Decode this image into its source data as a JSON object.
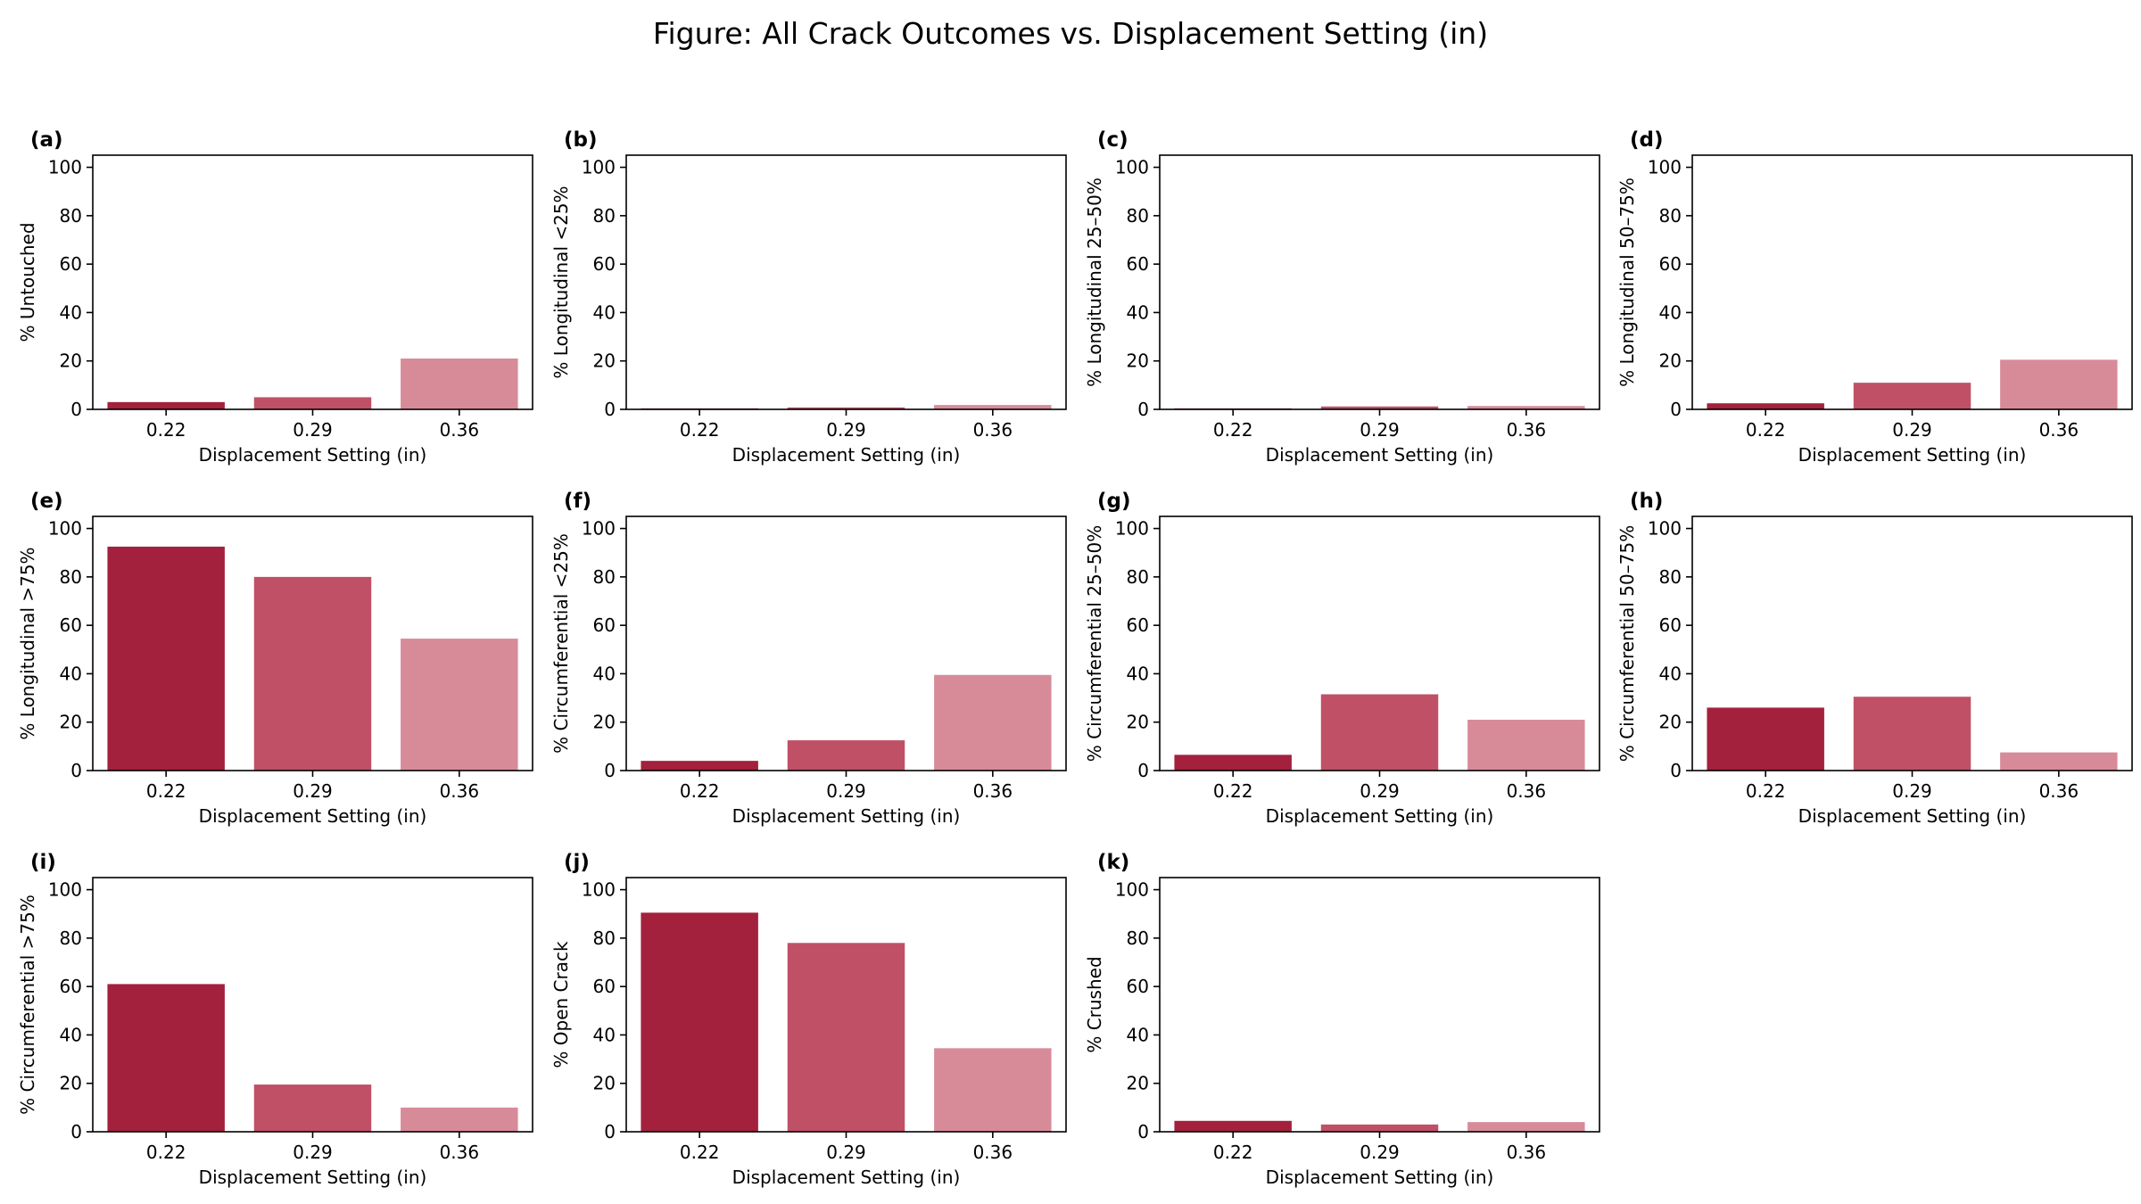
{
  "figure": {
    "title": "Figure: All Crack Outcomes vs. Displacement Setting (in)"
  },
  "colors": {
    "bar_colors": [
      "#a3213c",
      "#c05066",
      "#d78b99"
    ],
    "axis": "#000000",
    "background": "#ffffff"
  },
  "chart_data": [
    {
      "panel": "(a)",
      "type": "bar",
      "categories": [
        "0.22",
        "0.29",
        "0.36"
      ],
      "values": [
        3,
        5,
        21
      ],
      "xlabel": "Displacement Setting (in)",
      "ylabel": "% Untouched",
      "ylim": [
        0,
        105
      ],
      "yticks": [
        0,
        20,
        40,
        60,
        80,
        100
      ],
      "grid": false
    },
    {
      "panel": "(b)",
      "type": "bar",
      "categories": [
        "0.22",
        "0.29",
        "0.36"
      ],
      "values": [
        0.4,
        0.8,
        1.8
      ],
      "xlabel": "Displacement Setting (in)",
      "ylabel": "% Longitudinal <25%",
      "ylim": [
        0,
        105
      ],
      "yticks": [
        0,
        20,
        40,
        60,
        80,
        100
      ],
      "grid": false
    },
    {
      "panel": "(c)",
      "type": "bar",
      "categories": [
        "0.22",
        "0.29",
        "0.36"
      ],
      "values": [
        0.4,
        1.2,
        1.4
      ],
      "xlabel": "Displacement Setting (in)",
      "ylabel": "% Longitudinal 25–50%",
      "ylim": [
        0,
        105
      ],
      "yticks": [
        0,
        20,
        40,
        60,
        80,
        100
      ],
      "grid": false
    },
    {
      "panel": "(d)",
      "type": "bar",
      "categories": [
        "0.22",
        "0.29",
        "0.36"
      ],
      "values": [
        2.5,
        11,
        20.5
      ],
      "xlabel": "Displacement Setting (in)",
      "ylabel": "% Longitudinal 50–75%",
      "ylim": [
        0,
        105
      ],
      "yticks": [
        0,
        20,
        40,
        60,
        80,
        100
      ],
      "grid": false
    },
    {
      "panel": "(e)",
      "type": "bar",
      "categories": [
        "0.22",
        "0.29",
        "0.36"
      ],
      "values": [
        92.5,
        80,
        54.5
      ],
      "xlabel": "Displacement Setting (in)",
      "ylabel": "% Longitudinal >75%",
      "ylim": [
        0,
        105
      ],
      "yticks": [
        0,
        20,
        40,
        60,
        80,
        100
      ],
      "grid": false
    },
    {
      "panel": "(f)",
      "type": "bar",
      "categories": [
        "0.22",
        "0.29",
        "0.36"
      ],
      "values": [
        4,
        12.5,
        39.5
      ],
      "xlabel": "Displacement Setting (in)",
      "ylabel": "% Circumferential <25%",
      "ylim": [
        0,
        105
      ],
      "yticks": [
        0,
        20,
        40,
        60,
        80,
        100
      ],
      "grid": false
    },
    {
      "panel": "(g)",
      "type": "bar",
      "categories": [
        "0.22",
        "0.29",
        "0.36"
      ],
      "values": [
        6.5,
        31.5,
        21
      ],
      "xlabel": "Displacement Setting (in)",
      "ylabel": "% Circumferential 25–50%",
      "ylim": [
        0,
        105
      ],
      "yticks": [
        0,
        20,
        40,
        60,
        80,
        100
      ],
      "grid": false
    },
    {
      "panel": "(h)",
      "type": "bar",
      "categories": [
        "0.22",
        "0.29",
        "0.36"
      ],
      "values": [
        26,
        30.5,
        7.5
      ],
      "xlabel": "Displacement Setting (in)",
      "ylabel": "% Circumferential 50–75%",
      "ylim": [
        0,
        105
      ],
      "yticks": [
        0,
        20,
        40,
        60,
        80,
        100
      ],
      "grid": false
    },
    {
      "panel": "(i)",
      "type": "bar",
      "categories": [
        "0.22",
        "0.29",
        "0.36"
      ],
      "values": [
        61,
        19.5,
        10
      ],
      "xlabel": "Displacement Setting (in)",
      "ylabel": "% Circumferential >75%",
      "ylim": [
        0,
        105
      ],
      "yticks": [
        0,
        20,
        40,
        60,
        80,
        100
      ],
      "grid": false
    },
    {
      "panel": "(j)",
      "type": "bar",
      "categories": [
        "0.22",
        "0.29",
        "0.36"
      ],
      "values": [
        90.5,
        78,
        34.5
      ],
      "xlabel": "Displacement Setting (in)",
      "ylabel": "% Open Crack",
      "ylim": [
        0,
        105
      ],
      "yticks": [
        0,
        20,
        40,
        60,
        80,
        100
      ],
      "grid": false
    },
    {
      "panel": "(k)",
      "type": "bar",
      "categories": [
        "0.22",
        "0.29",
        "0.36"
      ],
      "values": [
        4.5,
        3,
        4
      ],
      "xlabel": "Displacement Setting (in)",
      "ylabel": "% Crushed",
      "ylim": [
        0,
        105
      ],
      "yticks": [
        0,
        20,
        40,
        60,
        80,
        100
      ],
      "grid": false
    }
  ]
}
